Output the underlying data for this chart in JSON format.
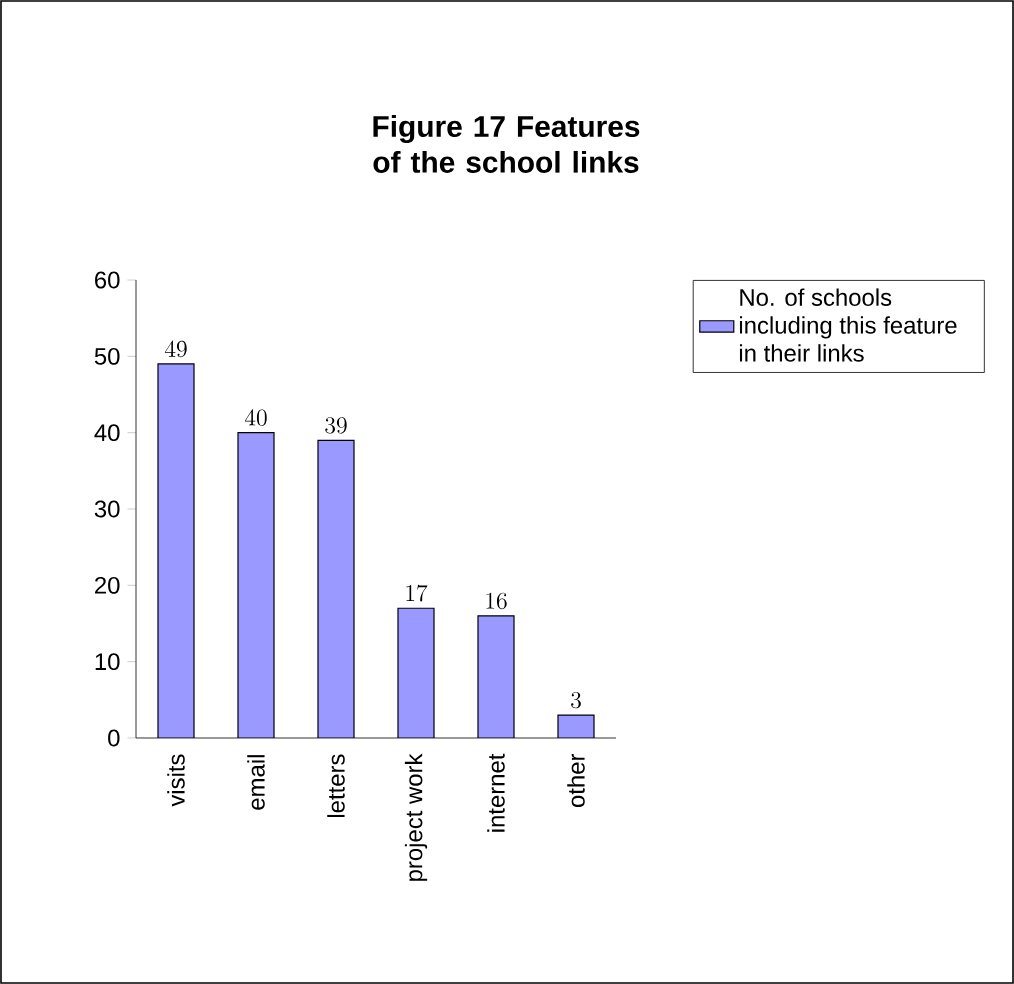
{
  "chart_data": {
    "type": "bar",
    "title": "Figure 17 Features of the school links",
    "categories": [
      "visits",
      "email",
      "letters",
      "project work",
      "internet",
      "other"
    ],
    "series": [
      {
        "name": "No. of schools including this feature in their links",
        "color": "#9999ff",
        "values": [
          49,
          40,
          39,
          17,
          16,
          3
        ]
      }
    ],
    "ylim": [
      0,
      60
    ],
    "yticks": [
      0,
      10,
      20,
      30,
      40,
      50,
      60
    ],
    "data_labels": true,
    "legend": "right",
    "grid": false
  }
}
